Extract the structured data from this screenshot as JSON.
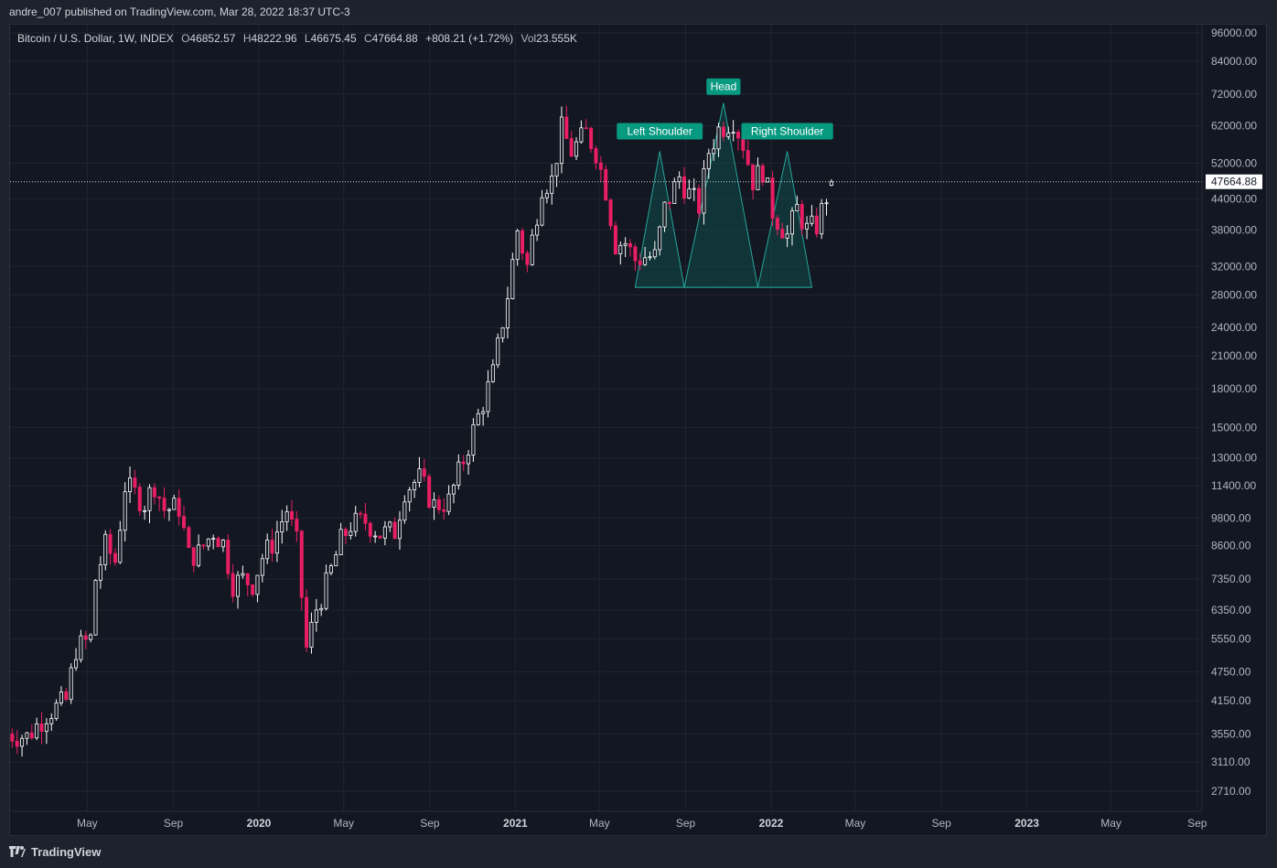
{
  "header": {
    "publisher_text": "andre_007 published on TradingView.com, Mar 28, 2022 18:37 UTC-3"
  },
  "legend": {
    "symbol": "Bitcoin / U.S. Dollar, 1W, INDEX",
    "open_label": "O",
    "open": "46852.57",
    "high_label": "H",
    "high": "48222.96",
    "low_label": "L",
    "low": "46675.45",
    "close_label": "C",
    "close": "47664.88",
    "change": "+808.21 (+1.72%)",
    "vol_label": "Vol",
    "vol": "23.555K"
  },
  "price_axis": {
    "ticks": [
      "96000.00",
      "84000.00",
      "72000.00",
      "62000.00",
      "52000.00",
      "44000.00",
      "38000.00",
      "32000.00",
      "28000.00",
      "24000.00",
      "21000.00",
      "18000.00",
      "15000.00",
      "13000.00",
      "11400.00",
      "9800.00",
      "8600.00",
      "7350.00",
      "6350.00",
      "5550.00",
      "4750.00",
      "4150.00",
      "3550.00",
      "3110.00",
      "2710.00"
    ],
    "last_price": "47664.88"
  },
  "time_axis": {
    "labels": [
      {
        "text": "May",
        "year": false
      },
      {
        "text": "Sep",
        "year": false
      },
      {
        "text": "2020",
        "year": true
      },
      {
        "text": "May",
        "year": false
      },
      {
        "text": "Sep",
        "year": false
      },
      {
        "text": "2021",
        "year": true
      },
      {
        "text": "May",
        "year": false
      },
      {
        "text": "Sep",
        "year": false
      },
      {
        "text": "2022",
        "year": true
      },
      {
        "text": "May",
        "year": false
      },
      {
        "text": "Sep",
        "year": false
      },
      {
        "text": "2023",
        "year": true
      },
      {
        "text": "May",
        "year": false
      },
      {
        "text": "Sep",
        "year": false
      }
    ]
  },
  "annotations": {
    "left_shoulder": "Left Shoulder",
    "head": "Head",
    "right_shoulder": "Right Shoulder"
  },
  "colors": {
    "up": "#ffffff",
    "down": "#e91e63",
    "pattern_fill": "#0b6b5e",
    "pattern_line": "#26a69a",
    "label_bg": "#089981",
    "grid": "#1f2430"
  },
  "chart_data": {
    "type": "candlestick",
    "scale": "log",
    "ylim": [
      2450,
      105000
    ],
    "timeframe": "1W",
    "price_points": [
      [
        "2019-01-07",
        3550
      ],
      [
        "2019-02-04",
        3500
      ],
      [
        "2019-03-04",
        3900
      ],
      [
        "2019-04-01",
        4150
      ],
      [
        "2019-04-15",
        5300
      ],
      [
        "2019-05-06",
        5550
      ],
      [
        "2019-05-13",
        7350
      ],
      [
        "2019-05-27",
        8600
      ],
      [
        "2019-06-10",
        8000
      ],
      [
        "2019-06-24",
        11400
      ],
      [
        "2019-07-08",
        11000
      ],
      [
        "2019-07-22",
        10500
      ],
      [
        "2019-08-05",
        11500
      ],
      [
        "2019-08-19",
        10200
      ],
      [
        "2019-09-09",
        10300
      ],
      [
        "2019-09-23",
        8200
      ],
      [
        "2019-10-07",
        8300
      ],
      [
        "2019-10-28",
        9200
      ],
      [
        "2019-11-11",
        8700
      ],
      [
        "2019-11-25",
        7200
      ],
      [
        "2019-12-09",
        7350
      ],
      [
        "2019-12-23",
        7200
      ],
      [
        "2020-01-06",
        8150
      ],
      [
        "2020-01-20",
        8700
      ],
      [
        "2020-02-10",
        10200
      ],
      [
        "2020-02-24",
        8700
      ],
      [
        "2020-03-09",
        5300
      ],
      [
        "2020-03-23",
        6400
      ],
      [
        "2020-04-06",
        7150
      ],
      [
        "2020-04-27",
        8800
      ],
      [
        "2020-05-11",
        9500
      ],
      [
        "2020-06-01",
        9650
      ],
      [
        "2020-06-22",
        9100
      ],
      [
        "2020-07-13",
        9200
      ],
      [
        "2020-07-27",
        11200
      ],
      [
        "2020-08-17",
        11800
      ],
      [
        "2020-09-07",
        10400
      ],
      [
        "2020-09-28",
        10600
      ],
      [
        "2020-10-19",
        12900
      ],
      [
        "2020-11-09",
        15800
      ],
      [
        "2020-11-30",
        19300
      ],
      [
        "2020-12-21",
        28000
      ],
      [
        "2021-01-04",
        38000
      ],
      [
        "2021-01-18",
        32000
      ],
      [
        "2021-02-08",
        47000
      ],
      [
        "2021-02-22",
        48000
      ],
      [
        "2021-03-08",
        61000
      ],
      [
        "2021-03-22",
        55000
      ],
      [
        "2021-04-12",
        60000
      ],
      [
        "2021-04-26",
        55000
      ],
      [
        "2021-05-10",
        46000
      ],
      [
        "2021-05-24",
        35600
      ],
      [
        "2021-06-07",
        35800
      ],
      [
        "2021-06-21",
        33000
      ],
      [
        "2021-07-05",
        33500
      ],
      [
        "2021-07-19",
        33500
      ],
      [
        "2021-08-02",
        42000
      ],
      [
        "2021-08-23",
        48800
      ],
      [
        "2021-09-06",
        45000
      ],
      [
        "2021-09-20",
        42500
      ],
      [
        "2021-10-04",
        55000
      ],
      [
        "2021-10-18",
        61000
      ],
      [
        "2021-11-08",
        64000
      ],
      [
        "2021-11-22",
        57000
      ],
      [
        "2021-12-06",
        48000
      ],
      [
        "2021-12-20",
        50500
      ],
      [
        "2022-01-03",
        41500
      ],
      [
        "2022-01-24",
        37000
      ],
      [
        "2022-02-07",
        42000
      ],
      [
        "2022-02-21",
        38000
      ],
      [
        "2022-03-07",
        38800
      ],
      [
        "2022-03-21",
        44500
      ],
      [
        "2022-03-28",
        47664.88
      ]
    ],
    "last_candle": {
      "open": 46852.57,
      "high": 48222.96,
      "low": 46675.45,
      "close": 47664.88,
      "change": 808.21,
      "change_pct": 1.72,
      "volume": "23.555K"
    },
    "pattern": {
      "name": "head and shoulders",
      "neckline": 29000,
      "left_shoulder": {
        "start": "2021-06-21",
        "peak": "2021-07-26",
        "peak_price": 55000,
        "end": "2021-08-30"
      },
      "head": {
        "start": "2021-08-30",
        "peak": "2021-10-25",
        "peak_price": 69000,
        "end": "2021-12-13"
      },
      "right_shoulder": {
        "start": "2021-12-13",
        "peak": "2022-01-24",
        "peak_price": 55000,
        "end": "2022-02-28"
      }
    }
  }
}
